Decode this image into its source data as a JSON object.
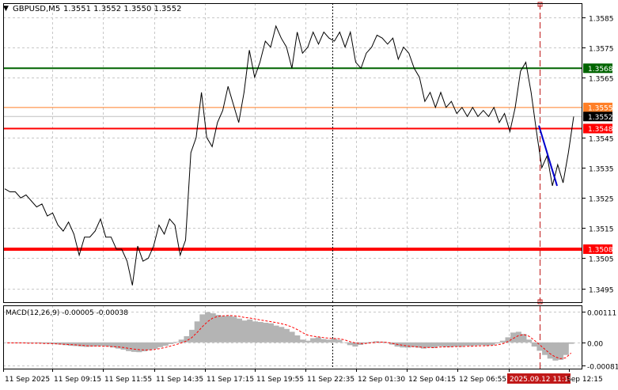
{
  "header": {
    "symbol_label": "GBPUSD,M5",
    "ohlc": "1.3551 1.3552 1.3550 1.3552"
  },
  "colors": {
    "grid": "#c8c8c8",
    "price_line": "#000000",
    "green_level": "#006400",
    "red_level": "#ff0000",
    "orange_level": "#ff7f27",
    "blue_segment": "#0000cd",
    "histogram": "#b4b4b4",
    "signal": "#ff0000",
    "current_price_badge": "#000000",
    "vline_red": "#c01818"
  },
  "levels": [
    {
      "price": 1.3568,
      "label": "1.3568",
      "color": "green",
      "width": 2
    },
    {
      "price": 1.3555,
      "label": "1.3555",
      "color": "orange",
      "width": 1
    },
    {
      "price": 1.3548,
      "label": "1.3548",
      "color": "red",
      "width": 2
    },
    {
      "price": 1.3508,
      "label": "1.3508",
      "color": "red",
      "width": 4
    }
  ],
  "current_price": {
    "price": 1.3552,
    "label": "1.3552"
  },
  "price_axis": {
    "ticks": [
      {
        "price": 1.3585,
        "label": "1.3585"
      },
      {
        "price": 1.3575,
        "label": "1.3575"
      },
      {
        "price": 1.3565,
        "label": "1.3565"
      },
      {
        "price": 1.3545,
        "label": "1.3545"
      },
      {
        "price": 1.3535,
        "label": "1.3535"
      },
      {
        "price": 1.3525,
        "label": "1.3525"
      },
      {
        "price": 1.3515,
        "label": "1.3515"
      },
      {
        "price": 1.3505,
        "label": "1.3505"
      },
      {
        "price": 1.3495,
        "label": "1.3495"
      }
    ]
  },
  "time_axis": {
    "labels": [
      "11 Sep 2025",
      "11 Sep 09:15",
      "11 Sep 11:55",
      "11 Sep 14:35",
      "11 Sep 17:15",
      "11 Sep 19:55",
      "11 Sep 22:35",
      "12 Sep 01:30",
      "12 Sep 04:15",
      "12 Sep 06:55",
      "2025.09.12 11:10",
      "Sep 12:15"
    ],
    "highlight_label": "2025.09.12 11:10"
  },
  "macd": {
    "label": "MACD(12,26,9) -0.00005 -0.00038",
    "ticks": [
      {
        "value": 0.00111,
        "label": "0.00111"
      },
      {
        "value": 0.0,
        "label": "0.00"
      },
      {
        "value": -0.00081,
        "label": "-0.00081"
      }
    ]
  },
  "chart_data": {
    "type": "line",
    "symbol": "GBPUSD,M5",
    "ylim": [
      1.349,
      1.359
    ],
    "price_series": [
      1.3528,
      1.3527,
      1.3527,
      1.3525,
      1.3526,
      1.3524,
      1.3522,
      1.3523,
      1.3519,
      1.352,
      1.3516,
      1.3514,
      1.3517,
      1.3513,
      1.3506,
      1.3512,
      1.3512,
      1.3514,
      1.3518,
      1.3512,
      1.3512,
      1.3508,
      1.3508,
      1.3504,
      1.3496,
      1.3509,
      1.3504,
      1.3505,
      1.3509,
      1.3516,
      1.3513,
      1.3518,
      1.3516,
      1.3506,
      1.3511,
      1.354,
      1.3545,
      1.356,
      1.3545,
      1.3542,
      1.355,
      1.3554,
      1.3562,
      1.3556,
      1.355,
      1.356,
      1.3574,
      1.3565,
      1.357,
      1.3577,
      1.3575,
      1.3582,
      1.3578,
      1.3575,
      1.3568,
      1.358,
      1.3573,
      1.3575,
      1.358,
      1.3576,
      1.358,
      1.3578,
      1.3577,
      1.358,
      1.3575,
      1.358,
      1.357,
      1.3568,
      1.3573,
      1.3575,
      1.3579,
      1.3578,
      1.3576,
      1.3578,
      1.3571,
      1.3575,
      1.3573,
      1.3568,
      1.3565,
      1.3557,
      1.356,
      1.3555,
      1.356,
      1.3555,
      1.3557,
      1.3553,
      1.3555,
      1.3552,
      1.3555,
      1.3552,
      1.3554,
      1.3552,
      1.3555,
      1.355,
      1.3553,
      1.3547,
      1.3555,
      1.3567,
      1.357,
      1.356,
      1.3547,
      1.3535,
      1.3539,
      1.3529,
      1.3536,
      1.353,
      1.354,
      1.3552
    ],
    "blue_segment": [
      1.3549,
      1.3529
    ],
    "macd_histogram": [
      0.0,
      0.0,
      0.0,
      -2e-05,
      -3e-05,
      -2e-05,
      -3e-05,
      -4e-05,
      -5e-05,
      -6e-05,
      -8e-05,
      -0.0001,
      -0.00012,
      -0.00013,
      -0.00015,
      -0.00016,
      -0.00015,
      -0.00014,
      -0.00013,
      -0.00015,
      -0.00018,
      -0.00022,
      -0.00026,
      -0.00031,
      -0.00034,
      -0.00035,
      -0.00032,
      -0.00028,
      -0.00023,
      -0.00017,
      -0.00012,
      -6e-05,
      2e-05,
      0.0001,
      0.00022,
      0.00045,
      0.00075,
      0.001,
      0.00108,
      0.00104,
      0.00098,
      0.00094,
      0.00095,
      0.00092,
      0.00085,
      0.00078,
      0.00082,
      0.00075,
      0.00073,
      0.0007,
      0.00068,
      0.0006,
      0.00055,
      0.00048,
      0.00038,
      0.00025,
      0.0001,
      6e-05,
      0.00015,
      0.00018,
      0.00012,
      0.0001,
      0.00013,
      9e-05,
      0.0,
      -0.0001,
      -0.00015,
      -9e-05,
      -4e-05,
      2e-05,
      4e-05,
      3e-05,
      -2e-05,
      -8e-05,
      -0.00015,
      -0.00018,
      -0.00019,
      -0.00017,
      -0.00019,
      -0.00022,
      -0.00019,
      -0.0002,
      -0.00014,
      -0.00016,
      -0.00017,
      -0.00015,
      -0.00016,
      -0.00012,
      -0.00013,
      -0.00011,
      -0.0001,
      -0.00012,
      -0.0001,
      -4e-05,
      6e-05,
      0.00018,
      0.00035,
      0.00038,
      0.0003,
      0.0001,
      -0.00015,
      -0.0003,
      -0.00045,
      -0.00058,
      -0.00065,
      -0.00062,
      -0.00045,
      -5e-05
    ],
    "macd_signal": [
      -2e-05,
      -2e-05,
      -2e-05,
      -2e-05,
      -3e-05,
      -3e-05,
      -3e-05,
      -4e-05,
      -4e-05,
      -5e-05,
      -6e-05,
      -7e-05,
      -8e-05,
      -9e-05,
      -0.0001,
      -0.00012,
      -0.00013,
      -0.00013,
      -0.00014,
      -0.00014,
      -0.00015,
      -0.00016,
      -0.00018,
      -0.00021,
      -0.00024,
      -0.00026,
      -0.00027,
      -0.00027,
      -0.00025,
      -0.00022,
      -0.00018,
      -0.00013,
      -8e-05,
      -2e-05,
      5e-05,
      0.00017,
      0.00035,
      0.00056,
      0.00074,
      0.00087,
      0.00093,
      0.00095,
      0.00096,
      0.00095,
      0.00093,
      0.00089,
      0.00087,
      0.00084,
      0.0008,
      0.00077,
      0.00074,
      0.00071,
      0.00067,
      0.00062,
      0.00055,
      0.00046,
      0.00035,
      0.00026,
      0.00022,
      0.0002,
      0.00017,
      0.00015,
      0.00014,
      0.00013,
      9e-05,
      3e-05,
      -2e-05,
      -4e-05,
      -4e-05,
      -2e-05,
      0.0,
      1e-05,
      0.0,
      -3e-05,
      -7e-05,
      -0.0001,
      -0.00013,
      -0.00015,
      -0.00016,
      -0.00018,
      -0.00018,
      -0.00019,
      -0.00017,
      -0.00016,
      -0.00016,
      -0.00015,
      -0.00015,
      -0.00014,
      -0.00014,
      -0.00013,
      -0.00012,
      -0.00012,
      -0.00011,
      -9e-05,
      -5e-05,
      3e-05,
      0.00014,
      0.00024,
      0.00028,
      0.00022,
      8e-05,
      -8e-05,
      -0.00024,
      -0.0004,
      -0.00052,
      -0.00058,
      -0.00055,
      -0.00038
    ]
  }
}
